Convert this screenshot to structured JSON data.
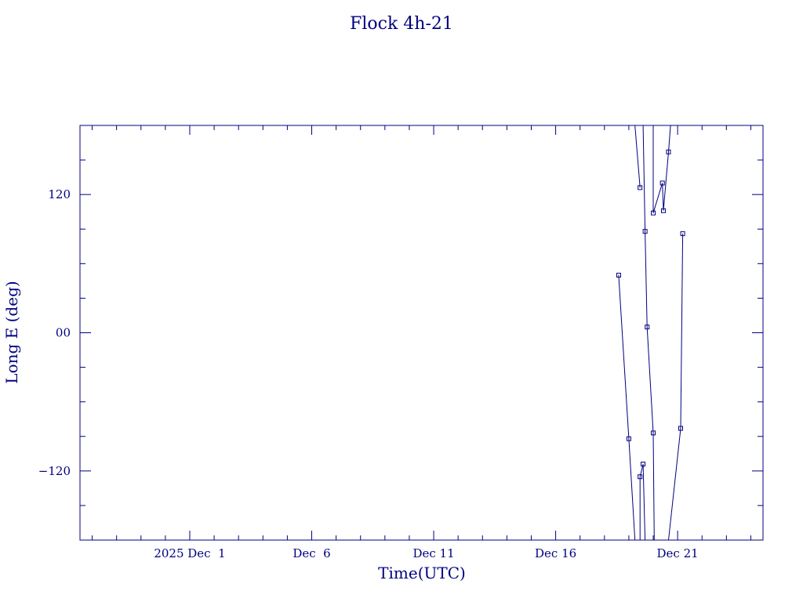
{
  "chart_data": {
    "type": "line",
    "title": "Flock 4h-21",
    "xlabel": "Time(UTC)",
    "ylabel": "Long E (deg)",
    "color": "#00007f",
    "markers": true,
    "grid": false,
    "legend": "none",
    "x_unit": "days, 2025 Nov-Dec (UTC)",
    "xlim": [
      "2025-11-26T12:00",
      "2025-12-24T12:00"
    ],
    "ylim": [
      -180,
      180
    ],
    "x_ticks": [
      {
        "value": "2025-12-01",
        "label": "2025 Dec  1"
      },
      {
        "value": "2025-12-06",
        "label": "Dec  6"
      },
      {
        "value": "2025-12-11",
        "label": "Dec 11"
      },
      {
        "value": "2025-12-16",
        "label": "Dec 16"
      },
      {
        "value": "2025-12-21",
        "label": "Dec 21"
      }
    ],
    "y_ticks": [
      {
        "value": 120,
        "label": "120"
      },
      {
        "value": 0,
        "label": "00"
      },
      {
        "value": -120,
        "label": "−120"
      }
    ],
    "series": [
      {
        "points": [
          [
            "2025-12-18T14:00",
            50
          ],
          [
            "2025-12-19T00:00",
            -92
          ],
          [
            "2025-12-19T06:00",
            -180
          ]
        ]
      },
      {
        "points": [
          [
            "2025-12-19T06:00",
            180
          ],
          [
            "2025-12-19T11:00",
            126
          ]
        ]
      },
      {
        "points": [
          [
            "2025-12-19T11:00",
            -180
          ],
          [
            "2025-12-19T11:00",
            -125
          ],
          [
            "2025-12-19T14:00",
            -114
          ],
          [
            "2025-12-19T16:00",
            -180
          ]
        ]
      },
      {
        "points": [
          [
            "2025-12-19T11:00",
            180
          ],
          [
            "2025-12-19T14:00",
            180
          ],
          [
            "2025-12-19T16:00",
            88
          ],
          [
            "2025-12-19T18:00",
            5
          ],
          [
            "2025-12-20T00:00",
            -87
          ],
          [
            "2025-12-20T01:00",
            -180
          ]
        ]
      },
      {
        "points": [
          [
            "2025-12-20T00:00",
            180
          ],
          [
            "2025-12-20T00:00",
            104
          ],
          [
            "2025-12-20T09:00",
            130
          ],
          [
            "2025-12-20T10:00",
            106
          ],
          [
            "2025-12-20T15:00",
            157
          ],
          [
            "2025-12-20T17:00",
            180
          ]
        ]
      },
      {
        "points": [
          [
            "2025-12-20T15:00",
            -180
          ],
          [
            "2025-12-21T03:00",
            -83
          ],
          [
            "2025-12-21T05:00",
            86
          ]
        ]
      }
    ]
  }
}
